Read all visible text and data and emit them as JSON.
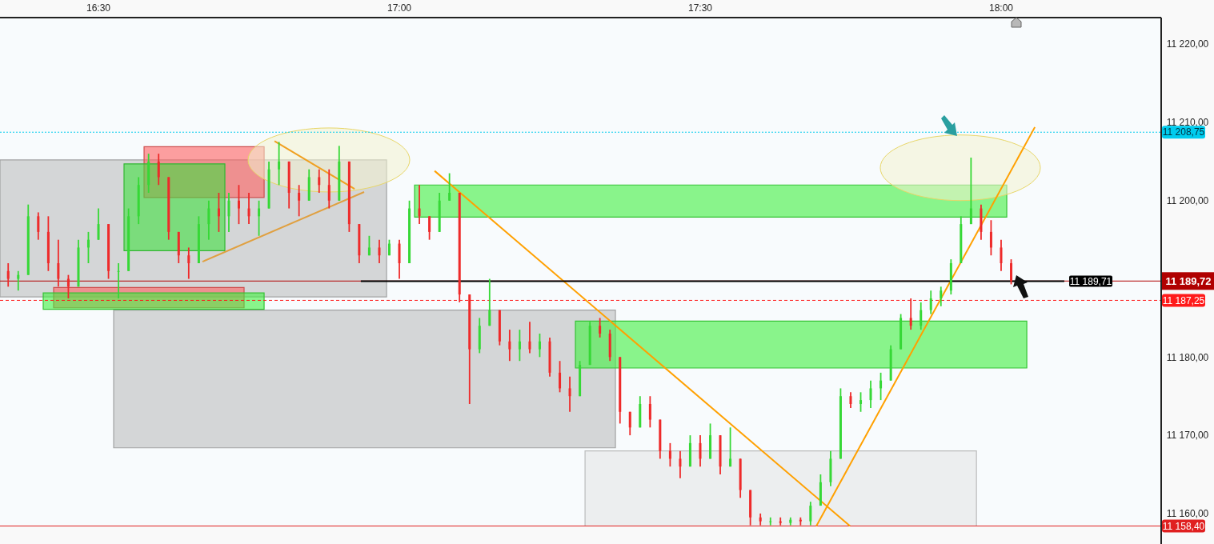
{
  "chart_data": {
    "type": "candlestick",
    "x": [
      16.35,
      16.3667,
      16.3833,
      16.4,
      16.4167,
      16.4333,
      16.45,
      16.4667,
      16.4833,
      16.5,
      16.5167,
      16.5333,
      16.55,
      16.5667,
      16.5833,
      16.6,
      16.6167,
      16.6333,
      16.65,
      16.6667,
      16.6833,
      16.7,
      16.7167,
      16.7333,
      16.75,
      16.7667,
      16.7833,
      16.8,
      16.8167,
      16.8333,
      16.85,
      16.8667,
      16.8833,
      16.9,
      16.9167,
      16.9333,
      16.95,
      16.9667,
      16.9833,
      17,
      17.0167,
      17.0333,
      17.05,
      17.0667,
      17.0833,
      17.1,
      17.1167,
      17.1333,
      17.15,
      17.1667,
      17.1833,
      17.2,
      17.2167,
      17.2333,
      17.25,
      17.2667,
      17.2833,
      17.3,
      17.3167,
      17.3333,
      17.35,
      17.3667,
      17.3833,
      17.4,
      17.4167,
      17.4333,
      17.45,
      17.4667,
      17.4833,
      17.5,
      17.5167,
      17.5333,
      17.55,
      17.5667,
      17.5833,
      17.6,
      17.6167,
      17.6333,
      17.65,
      17.6667,
      17.6833,
      17.7,
      17.7167,
      17.7333,
      17.75,
      17.7667,
      17.7833,
      17.8,
      17.8167,
      17.8333,
      17.85,
      17.8667,
      17.8833,
      17.9,
      17.9167,
      17.9333,
      17.95,
      17.9667,
      17.9833,
      18,
      18.0167
    ],
    "ohlc": [
      [
        11191,
        11192,
        11189,
        11190
      ],
      [
        11190,
        11191,
        11188.5,
        11190.5
      ],
      [
        11190.5,
        11199.5,
        11190.5,
        11198
      ],
      [
        11198,
        11198.5,
        11195,
        11196
      ],
      [
        11196,
        11198,
        11191,
        11192
      ],
      [
        11192,
        11195,
        11189,
        11190
      ],
      [
        11190,
        11190.5,
        11187.5,
        11189
      ],
      [
        11189,
        11195,
        11189,
        11194
      ],
      [
        11194,
        11196,
        11192,
        11195
      ],
      [
        11195,
        11199,
        11195,
        11197
      ],
      [
        11197,
        11197,
        11190,
        11191
      ],
      [
        11191,
        11192,
        11187.5,
        11191
      ],
      [
        11191,
        11199,
        11191,
        11198
      ],
      [
        11198,
        11203,
        11197,
        11202
      ],
      [
        11202,
        11206,
        11201,
        11205
      ],
      [
        11205,
        11206,
        11202,
        11203
      ],
      [
        11203,
        11203,
        11195,
        11196
      ],
      [
        11196,
        11196,
        11192,
        11193
      ],
      [
        11193,
        11194,
        11190,
        11192
      ],
      [
        11192,
        11198,
        11192,
        11197
      ],
      [
        11197,
        11200,
        11195,
        11199
      ],
      [
        11199,
        11201,
        11196,
        11198
      ],
      [
        11198,
        11201,
        11196,
        11200
      ],
      [
        11200,
        11202,
        11197,
        11199
      ],
      [
        11199,
        11201,
        11197,
        11198
      ],
      [
        11198,
        11200,
        11195.5,
        11199
      ],
      [
        11199,
        11205,
        11199,
        11204
      ],
      [
        11204,
        11207.5,
        11202,
        11205
      ],
      [
        11205,
        11205,
        11199,
        11201
      ],
      [
        11201,
        11202,
        11198,
        11200
      ],
      [
        11200,
        11204,
        11200,
        11203
      ],
      [
        11203,
        11204,
        11201,
        11202
      ],
      [
        11202,
        11204,
        11199,
        11200
      ],
      [
        11200,
        11207,
        11200,
        11205
      ],
      [
        11205,
        11205,
        11196,
        11197
      ],
      [
        11197,
        11197,
        11192,
        11193
      ],
      [
        11193,
        11195.5,
        11193,
        11194
      ],
      [
        11194,
        11195,
        11192,
        11193
      ],
      [
        11193,
        11195,
        11193,
        11194.5
      ],
      [
        11194.5,
        11195,
        11190,
        11192
      ],
      [
        11192,
        11200,
        11192,
        11199
      ],
      [
        11199,
        11202,
        11197,
        11198
      ],
      [
        11198,
        11198,
        11195,
        11196
      ],
      [
        11196,
        11201,
        11196,
        11200
      ],
      [
        11200,
        11203.5,
        11200,
        11201
      ],
      [
        11201,
        11201,
        11187,
        11188
      ],
      [
        11188,
        11188,
        11174,
        11181
      ],
      [
        11181,
        11185,
        11180.5,
        11184
      ],
      [
        11184,
        11190,
        11184,
        11186
      ],
      [
        11186,
        11186,
        11181.5,
        11182
      ],
      [
        11182,
        11183.5,
        11179.5,
        11181
      ],
      [
        11181,
        11183.5,
        11179.5,
        11182
      ],
      [
        11182,
        11184.5,
        11180.5,
        11181
      ],
      [
        11181,
        11183,
        11180,
        11182
      ],
      [
        11182,
        11182.5,
        11177.5,
        11178
      ],
      [
        11178,
        11179.5,
        11175.5,
        11176
      ],
      [
        11176,
        11177.5,
        11173,
        11175
      ],
      [
        11175,
        11179.5,
        11175,
        11179
      ],
      [
        11179,
        11184.5,
        11179,
        11184
      ],
      [
        11184,
        11185,
        11182.5,
        11183
      ],
      [
        11183,
        11183.5,
        11179.5,
        11180
      ],
      [
        11180,
        11180,
        11171.5,
        11173
      ],
      [
        11173,
        11173,
        11170,
        11171
      ],
      [
        11171,
        11175,
        11171,
        11174
      ],
      [
        11174,
        11175,
        11171,
        11172
      ],
      [
        11172,
        11172,
        11167,
        11168
      ],
      [
        11168,
        11169,
        11166,
        11167
      ],
      [
        11167,
        11168,
        11164.5,
        11166
      ],
      [
        11166,
        11170,
        11166,
        11169
      ],
      [
        11169,
        11170,
        11166,
        11167
      ],
      [
        11167,
        11171.5,
        11167,
        11170
      ],
      [
        11170,
        11170,
        11165,
        11166
      ],
      [
        11166,
        11171,
        11166,
        11167
      ],
      [
        11167,
        11167,
        11162,
        11163
      ],
      [
        11163,
        11163,
        11158.5,
        11159.5
      ],
      [
        11159.5,
        11160,
        11158.5,
        11159
      ],
      [
        11159,
        11159.5,
        11158.5,
        11159
      ],
      [
        11159,
        11159.5,
        11158.5,
        11158.8
      ],
      [
        11158.8,
        11159.5,
        11158.5,
        11159.2
      ],
      [
        11159.2,
        11159.5,
        11158.5,
        11159
      ],
      [
        11159,
        11161.5,
        11158.5,
        11161
      ],
      [
        11161,
        11165,
        11161,
        11164
      ],
      [
        11164,
        11168,
        11163.5,
        11167
      ],
      [
        11167,
        11176,
        11167,
        11175
      ],
      [
        11175,
        11175.5,
        11173.5,
        11174
      ],
      [
        11174,
        11175.5,
        11173,
        11174.5
      ],
      [
        11174.5,
        11177,
        11173.5,
        11176
      ],
      [
        11176,
        11178,
        11174.5,
        11177
      ],
      [
        11177,
        11181.5,
        11177,
        11181
      ],
      [
        11181,
        11185.5,
        11181,
        11185
      ],
      [
        11185,
        11187.5,
        11183.5,
        11184
      ],
      [
        11184,
        11187,
        11183.5,
        11186
      ],
      [
        11186,
        11188.5,
        11185.5,
        11187.5
      ],
      [
        11187.5,
        11189,
        11186.5,
        11188.5
      ],
      [
        11188.5,
        11192.5,
        11188,
        11192
      ],
      [
        11192,
        11198,
        11192,
        11197
      ],
      [
        11197,
        11205.5,
        11197,
        11199
      ],
      [
        11199,
        11199.5,
        11195,
        11196
      ],
      [
        11196,
        11197.5,
        11193,
        11194
      ],
      [
        11194,
        11195,
        11191,
        11192
      ],
      [
        11192,
        11192.5,
        11189.3,
        11189.72
      ]
    ],
    "series": [
      {
        "type": "line",
        "color": "#e0a040",
        "x": [
          16.6729,
          16.9415
        ],
        "values": [
          11192.2,
          11201.1
        ]
      },
      {
        "type": "line",
        "color": "#f0a020",
        "x": [
          16.7926,
          16.9256
        ],
        "values": [
          11207.6,
          11201.5
        ]
      },
      {
        "type": "line",
        "color": "#ffa000",
        "x": [
          17.0586,
          17.7489
        ],
        "values": [
          11203.8,
          11158.4
        ]
      },
      {
        "type": "line",
        "color": "#ffa000",
        "x": [
          17.693,
          18.0561
        ],
        "values": [
          11158.4,
          11209.4
        ]
      },
      {
        "type": "line",
        "color": "#000000",
        "x": [
          16.936,
          18.105
        ],
        "values": [
          11189.71,
          11189.71
        ]
      }
    ],
    "annotations": [
      {
        "text": "11 189,71",
        "x": 18.149,
        "y": 11189.71
      }
    ],
    "ref_lines": [
      {
        "axis": "y",
        "value": 11208.75,
        "label": "11 208,75",
        "color": "#00ccee",
        "line_style": "dotted"
      },
      {
        "axis": "y",
        "value": 11189.72,
        "label": "11 189,72",
        "color": "#b00000",
        "line_style": "solid"
      },
      {
        "axis": "y",
        "value": 11187.25,
        "label": "11 187,25",
        "color": "#ff1a1a",
        "line_style": "dashed"
      },
      {
        "axis": "y",
        "value": 11158.4,
        "label": "11 158,40",
        "color": "#e02020",
        "line_style": "solid"
      }
    ],
    "xlim": [
      16.3364,
      18.266
    ],
    "xticks": [
      {
        "value": 16.5,
        "label": "16:30"
      },
      {
        "value": 17,
        "label": "17:00"
      },
      {
        "value": 17.5,
        "label": "17:30"
      },
      {
        "value": 18,
        "label": "18:00"
      }
    ],
    "ylim": [
      11158.35,
      11223.4
    ],
    "yticks": [
      {
        "value": 11160,
        "label": "11 160,00"
      },
      {
        "value": 11170,
        "label": "11 170,00"
      },
      {
        "value": 11180,
        "label": "11 180,00"
      },
      {
        "value": 11200,
        "label": "11 200,00"
      },
      {
        "value": 11210,
        "label": "11 210,00"
      },
      {
        "value": 11220,
        "label": "11 220,00"
      }
    ],
    "grid": false
  }
}
